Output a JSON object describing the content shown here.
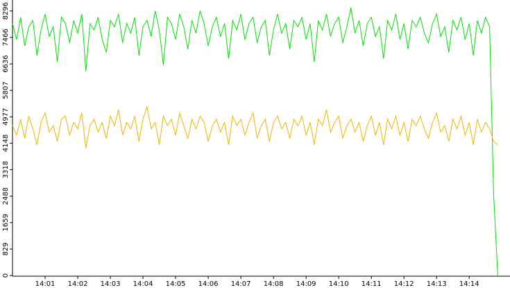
{
  "chart_data": {
    "type": "line",
    "x": [
      840,
      840.125,
      840.25,
      840.375,
      840.5,
      840.625,
      840.75,
      840.875,
      841,
      841.125,
      841.25,
      841.375,
      841.5,
      841.625,
      841.75,
      841.875,
      842,
      842.125,
      842.25,
      842.375,
      842.5,
      842.625,
      842.75,
      842.875,
      843,
      843.125,
      843.25,
      843.375,
      843.5,
      843.625,
      843.75,
      843.875,
      844,
      844.125,
      844.25,
      844.375,
      844.5,
      844.625,
      844.75,
      844.875,
      845,
      845.125,
      845.25,
      845.375,
      845.5,
      845.625,
      845.75,
      845.875,
      846,
      846.125,
      846.25,
      846.375,
      846.5,
      846.625,
      846.75,
      846.875,
      847,
      847.125,
      847.25,
      847.375,
      847.5,
      847.625,
      847.75,
      847.875,
      848,
      848.125,
      848.25,
      848.375,
      848.5,
      848.625,
      848.75,
      848.875,
      849,
      849.125,
      849.25,
      849.375,
      849.5,
      849.625,
      849.75,
      849.875,
      850,
      850.125,
      850.25,
      850.375,
      850.5,
      850.625,
      850.75,
      850.875,
      851,
      851.125,
      851.25,
      851.375,
      851.5,
      851.625,
      851.75,
      851.875,
      852,
      852.125,
      852.25,
      852.375,
      852.5,
      852.625,
      852.75,
      852.875,
      853,
      853.125,
      853.25,
      853.375,
      853.5,
      853.625,
      853.75,
      853.875,
      854,
      854.125,
      854.25,
      854.375,
      854.5,
      854.625,
      854.75,
      854.875
    ],
    "series": [
      {
        "color": "#00e000",
        "values": [
          7900,
          7400,
          8100,
          7200,
          7800,
          8000,
          6900,
          7700,
          8200,
          7500,
          7800,
          6700,
          8100,
          7900,
          7300,
          8000,
          7600,
          8200,
          6400,
          7900,
          7700,
          8100,
          7400,
          7000,
          8000,
          7800,
          8200,
          7300,
          7900,
          7600,
          8100,
          6900,
          7800,
          8000,
          7500,
          8300,
          7700,
          6600,
          8100,
          7900,
          7400,
          8200,
          7800,
          7100,
          8000,
          7600,
          8300,
          7900,
          7200,
          7800,
          8100,
          7500,
          7900,
          6800,
          8000,
          7700,
          8200,
          7400,
          7900,
          8100,
          7300,
          7800,
          8000,
          6900,
          7700,
          8200,
          7600,
          7900,
          7100,
          8000,
          7800,
          8100,
          7400,
          7900,
          6700,
          8000,
          7700,
          8200,
          7500,
          7900,
          8100,
          7300,
          7800,
          8400,
          7600,
          8000,
          7200,
          7900,
          8100,
          7500,
          7800,
          6800,
          8000,
          7700,
          8200,
          7400,
          7900,
          7100,
          8000,
          7800,
          8100,
          7600,
          7300,
          7900,
          8200,
          7500,
          7800,
          7000,
          8000,
          7700,
          8100,
          7400,
          7900,
          6900,
          8000,
          7600,
          8100,
          7800,
          2500,
          0
        ]
      },
      {
        "color": "#f0b400",
        "values": [
          4700,
          4400,
          4900,
          4300,
          5000,
          4600,
          4100,
          4800,
          5100,
          4500,
          4700,
          4200,
          4900,
          5000,
          4400,
          4800,
          4600,
          5100,
          4000,
          4700,
          4900,
          4500,
          4800,
          4300,
          5000,
          4700,
          5200,
          4400,
          4800,
          4600,
          5000,
          4200,
          4900,
          5300,
          4600,
          4800,
          4100,
          5000,
          4700,
          4900,
          4400,
          5100,
          4700,
          4300,
          4900,
          4600,
          5000,
          4800,
          4200,
          4700,
          4900,
          4500,
          4800,
          4100,
          5000,
          4700,
          4900,
          4400,
          4800,
          5100,
          4300,
          4700,
          4900,
          4200,
          4800,
          5000,
          4600,
          4800,
          4300,
          4900,
          4700,
          5000,
          4400,
          4800,
          4100,
          4900,
          4700,
          5200,
          4500,
          4800,
          5000,
          4300,
          4700,
          4900,
          4500,
          4800,
          4200,
          4700,
          5000,
          4400,
          4800,
          4100,
          4900,
          4600,
          5000,
          4400,
          4800,
          4200,
          4900,
          4700,
          5000,
          4600,
          4300,
          4800,
          5100,
          4500,
          4700,
          4200,
          4900,
          4600,
          5000,
          4400,
          4800,
          4100,
          4900,
          4500,
          4800,
          4600,
          4200,
          4100
        ]
      }
    ],
    "xlim": [
      840,
      855.25
    ],
    "xticks": [
      {
        "value": 841,
        "label": "14:01"
      },
      {
        "value": 842,
        "label": "14:02"
      },
      {
        "value": 843,
        "label": "14:03"
      },
      {
        "value": 844,
        "label": "14:04"
      },
      {
        "value": 845,
        "label": "14:05"
      },
      {
        "value": 846,
        "label": "14:06"
      },
      {
        "value": 847,
        "label": "14:07"
      },
      {
        "value": 848,
        "label": "14:08"
      },
      {
        "value": 849,
        "label": "14:09"
      },
      {
        "value": 850,
        "label": "14:10"
      },
      {
        "value": 851,
        "label": "14:11"
      },
      {
        "value": 852,
        "label": "14:12"
      },
      {
        "value": 853,
        "label": "14:13"
      },
      {
        "value": 854,
        "label": "14:14"
      }
    ],
    "ylim": [
      0,
      8640
    ],
    "yticks": [
      0,
      829,
      1659,
      2488,
      3318,
      4148,
      4977,
      5807,
      6636,
      7466,
      8296
    ]
  }
}
